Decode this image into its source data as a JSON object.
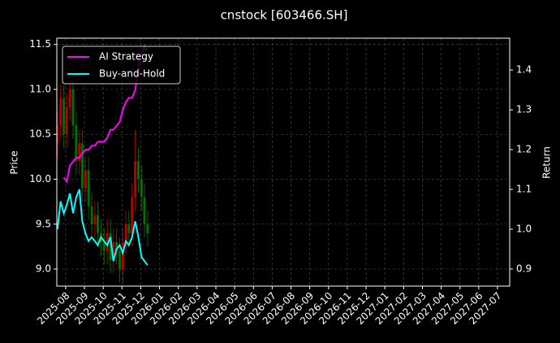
{
  "chart_data": {
    "type": "candlestick",
    "title": "cnstock [603466.SH]",
    "ylabel": "Price",
    "y2label": "Return",
    "x": [
      2025.547,
      2025.561,
      2025.575,
      2025.588,
      2025.602,
      2025.616,
      2025.63,
      2025.644,
      2025.657,
      2025.671,
      2025.685,
      2025.699,
      2025.713,
      2025.726,
      2025.74,
      2025.754,
      2025.768,
      2025.782,
      2025.795,
      2025.809,
      2025.823,
      2025.837,
      2025.851,
      2025.864,
      2025.878,
      2025.892,
      2025.906,
      2025.92,
      2025.933,
      2025.947
    ],
    "open": [
      10.4,
      10.6,
      10.9,
      10.5,
      10.8,
      11.0,
      10.6,
      10.2,
      10.4,
      9.9,
      10.1,
      9.7,
      9.5,
      9.6,
      9.4,
      9.3,
      9.2,
      9.4,
      9.1,
      9.3,
      9.2,
      9.0,
      9.3,
      9.5,
      9.4,
      9.8,
      10.2,
      10.0,
      9.8,
      9.5
    ],
    "high": [
      10.75,
      11.05,
      11.05,
      10.95,
      11.15,
      11.15,
      10.75,
      10.55,
      10.55,
      10.25,
      10.25,
      9.85,
      9.75,
      9.75,
      9.55,
      9.45,
      9.55,
      9.55,
      9.45,
      9.45,
      9.35,
      9.45,
      9.65,
      9.65,
      9.95,
      10.55,
      10.35,
      10.15,
      9.95,
      9.65
    ],
    "low": [
      10.25,
      10.45,
      10.35,
      10.35,
      10.65,
      10.45,
      10.05,
      10.05,
      9.75,
      9.75,
      9.55,
      9.35,
      9.35,
      9.25,
      9.15,
      9.05,
      9.05,
      8.95,
      8.95,
      9.05,
      8.85,
      8.85,
      9.15,
      9.25,
      9.25,
      9.65,
      9.85,
      9.65,
      9.35,
      9.25
    ],
    "close": [
      10.6,
      10.9,
      10.5,
      10.8,
      11.0,
      10.6,
      10.2,
      10.4,
      9.9,
      10.1,
      9.7,
      9.5,
      9.6,
      9.4,
      9.3,
      9.2,
      9.4,
      9.1,
      9.3,
      9.2,
      9.0,
      9.3,
      9.5,
      9.4,
      9.8,
      10.2,
      10.0,
      9.8,
      9.5,
      9.4
    ],
    "up_color": "#d00000",
    "down_color": "#008000",
    "series": [
      {
        "name": "AI Strategy",
        "color": "#ff00ff",
        "axis": "y2",
        "values": [
          null,
          null,
          1.13,
          1.12,
          1.16,
          1.17,
          1.18,
          1.18,
          1.19,
          1.2,
          1.2,
          1.21,
          1.21,
          1.22,
          1.22,
          1.22,
          1.23,
          1.25,
          1.25,
          1.26,
          1.27,
          1.3,
          1.32,
          1.33,
          1.33,
          1.35,
          1.4,
          1.44,
          1.46,
          1.45
        ]
      },
      {
        "name": "Buy-and-Hold",
        "color": "#00ffff",
        "axis": "y2",
        "values": [
          1.0,
          1.07,
          1.04,
          1.06,
          1.09,
          1.04,
          1.08,
          1.1,
          1.02,
          0.99,
          0.97,
          0.98,
          0.97,
          0.96,
          0.98,
          0.97,
          0.96,
          0.98,
          0.92,
          0.95,
          0.96,
          0.94,
          0.97,
          0.96,
          0.98,
          1.02,
          0.98,
          0.93,
          0.92,
          0.91
        ]
      }
    ],
    "xlim": [
      2025.544,
      2027.554
    ],
    "xticks": [
      {
        "value": 2025.5833,
        "label": "2025-08"
      },
      {
        "value": 2025.6667,
        "label": "2025-09"
      },
      {
        "value": 2025.75,
        "label": "2025-10"
      },
      {
        "value": 2025.8333,
        "label": "2025-11"
      },
      {
        "value": 2025.9167,
        "label": "2025-12"
      },
      {
        "value": 2026.0,
        "label": "2026-01"
      },
      {
        "value": 2026.0833,
        "label": "2026-02"
      },
      {
        "value": 2026.1667,
        "label": "2026-03"
      },
      {
        "value": 2026.25,
        "label": "2026-04"
      },
      {
        "value": 2026.3333,
        "label": "2026-05"
      },
      {
        "value": 2026.4167,
        "label": "2026-06"
      },
      {
        "value": 2026.5,
        "label": "2026-07"
      },
      {
        "value": 2026.5833,
        "label": "2026-08"
      },
      {
        "value": 2026.6667,
        "label": "2026-09"
      },
      {
        "value": 2026.75,
        "label": "2026-10"
      },
      {
        "value": 2026.8333,
        "label": "2026-11"
      },
      {
        "value": 2026.9167,
        "label": "2026-12"
      },
      {
        "value": 2027.0,
        "label": "2027-01"
      },
      {
        "value": 2027.0833,
        "label": "2027-02"
      },
      {
        "value": 2027.1667,
        "label": "2027-03"
      },
      {
        "value": 2027.25,
        "label": "2027-04"
      },
      {
        "value": 2027.3333,
        "label": "2027-05"
      },
      {
        "value": 2027.4167,
        "label": "2027-06"
      },
      {
        "value": 2027.5,
        "label": "2027-07"
      }
    ],
    "ylim": [
      8.81,
      11.57
    ],
    "yticks": [
      {
        "value": 9,
        "label": "9.0"
      },
      9.5,
      {
        "value": 10,
        "label": "10.0"
      },
      10.5,
      {
        "value": 11,
        "label": "11.0"
      },
      11.5
    ],
    "y2lim": [
      0.857,
      1.48
    ],
    "y2ticks": [
      0.9,
      {
        "value": 1,
        "label": "1.0"
      },
      1.1,
      1.2,
      1.3,
      1.4
    ],
    "grid": true,
    "legend": "upper left"
  }
}
